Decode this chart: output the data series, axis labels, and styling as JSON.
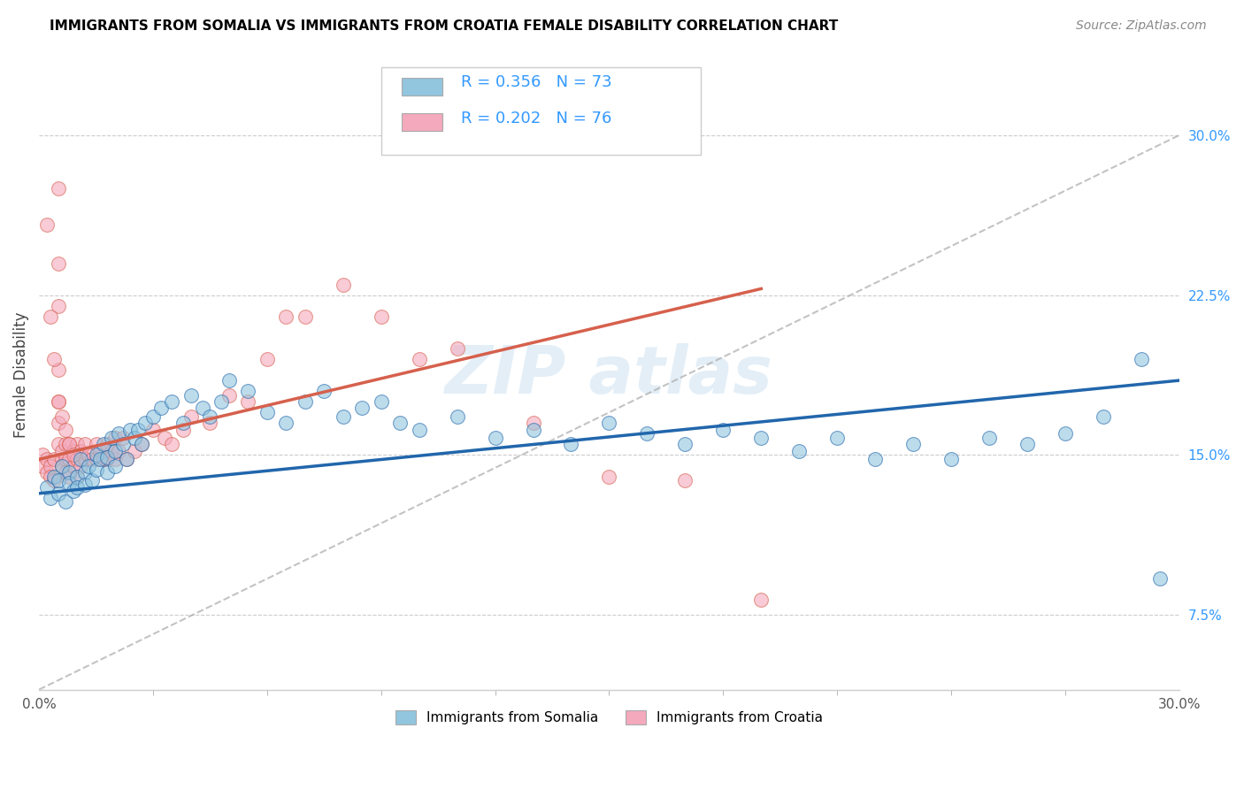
{
  "title": "IMMIGRANTS FROM SOMALIA VS IMMIGRANTS FROM CROATIA FEMALE DISABILITY CORRELATION CHART",
  "source": "Source: ZipAtlas.com",
  "ylabel": "Female Disability",
  "legend_label1": "Immigrants from Somalia",
  "legend_label2": "Immigrants from Croatia",
  "R1": 0.356,
  "N1": 73,
  "R2": 0.202,
  "N2": 76,
  "color_somalia": "#92c5de",
  "color_croatia": "#f4a9bc",
  "trend_color_somalia": "#2166ac",
  "trend_color_croatia": "#d6604d",
  "xlim": [
    0.0,
    0.3
  ],
  "ylim": [
    0.04,
    0.335
  ],
  "xtick_positions": [
    0.0,
    0.3
  ],
  "xtick_labels": [
    "0.0%",
    "30.0%"
  ],
  "yticks_right": [
    0.075,
    0.15,
    0.225,
    0.3
  ],
  "ytick_labels_right": [
    "7.5%",
    "15.0%",
    "22.5%",
    "30.0%"
  ],
  "watermark": "ZIP atlas",
  "somalia_x": [
    0.002,
    0.003,
    0.004,
    0.005,
    0.005,
    0.006,
    0.007,
    0.008,
    0.008,
    0.009,
    0.01,
    0.01,
    0.011,
    0.012,
    0.012,
    0.013,
    0.014,
    0.015,
    0.015,
    0.016,
    0.017,
    0.018,
    0.018,
    0.019,
    0.02,
    0.02,
    0.021,
    0.022,
    0.023,
    0.024,
    0.025,
    0.026,
    0.027,
    0.028,
    0.03,
    0.032,
    0.035,
    0.038,
    0.04,
    0.043,
    0.045,
    0.048,
    0.05,
    0.055,
    0.06,
    0.065,
    0.07,
    0.075,
    0.08,
    0.085,
    0.09,
    0.095,
    0.1,
    0.11,
    0.12,
    0.13,
    0.14,
    0.15,
    0.16,
    0.17,
    0.18,
    0.19,
    0.2,
    0.21,
    0.22,
    0.23,
    0.24,
    0.25,
    0.26,
    0.27,
    0.28,
    0.29,
    0.295
  ],
  "somalia_y": [
    0.135,
    0.13,
    0.14,
    0.132,
    0.138,
    0.145,
    0.128,
    0.142,
    0.137,
    0.133,
    0.14,
    0.135,
    0.148,
    0.142,
    0.136,
    0.145,
    0.138,
    0.15,
    0.143,
    0.148,
    0.155,
    0.149,
    0.142,
    0.158,
    0.152,
    0.145,
    0.16,
    0.155,
    0.148,
    0.162,
    0.158,
    0.162,
    0.155,
    0.165,
    0.168,
    0.172,
    0.175,
    0.165,
    0.178,
    0.172,
    0.168,
    0.175,
    0.185,
    0.18,
    0.17,
    0.165,
    0.175,
    0.18,
    0.168,
    0.172,
    0.175,
    0.165,
    0.162,
    0.168,
    0.158,
    0.162,
    0.155,
    0.165,
    0.16,
    0.155,
    0.162,
    0.158,
    0.152,
    0.158,
    0.148,
    0.155,
    0.148,
    0.158,
    0.155,
    0.16,
    0.168,
    0.195,
    0.092
  ],
  "croatia_x": [
    0.001,
    0.001,
    0.002,
    0.002,
    0.003,
    0.003,
    0.004,
    0.004,
    0.005,
    0.005,
    0.005,
    0.005,
    0.005,
    0.005,
    0.005,
    0.006,
    0.006,
    0.006,
    0.007,
    0.007,
    0.007,
    0.008,
    0.008,
    0.008,
    0.009,
    0.009,
    0.01,
    0.01,
    0.01,
    0.011,
    0.011,
    0.012,
    0.012,
    0.013,
    0.014,
    0.015,
    0.015,
    0.016,
    0.017,
    0.018,
    0.018,
    0.019,
    0.02,
    0.02,
    0.021,
    0.022,
    0.023,
    0.025,
    0.027,
    0.03,
    0.033,
    0.035,
    0.038,
    0.04,
    0.045,
    0.05,
    0.055,
    0.06,
    0.065,
    0.07,
    0.08,
    0.09,
    0.1,
    0.11,
    0.13,
    0.15,
    0.17,
    0.19,
    0.002,
    0.003,
    0.004,
    0.005,
    0.006,
    0.007,
    0.008,
    0.009
  ],
  "croatia_y": [
    0.15,
    0.145,
    0.142,
    0.148,
    0.145,
    0.14,
    0.148,
    0.138,
    0.275,
    0.24,
    0.22,
    0.19,
    0.175,
    0.165,
    0.155,
    0.148,
    0.152,
    0.145,
    0.155,
    0.148,
    0.142,
    0.155,
    0.148,
    0.14,
    0.152,
    0.145,
    0.155,
    0.148,
    0.14,
    0.152,
    0.145,
    0.155,
    0.148,
    0.15,
    0.148,
    0.155,
    0.148,
    0.152,
    0.148,
    0.155,
    0.148,
    0.152,
    0.158,
    0.148,
    0.152,
    0.158,
    0.148,
    0.152,
    0.155,
    0.162,
    0.158,
    0.155,
    0.162,
    0.168,
    0.165,
    0.178,
    0.175,
    0.195,
    0.215,
    0.215,
    0.23,
    0.215,
    0.195,
    0.2,
    0.165,
    0.14,
    0.138,
    0.082,
    0.258,
    0.215,
    0.195,
    0.175,
    0.168,
    0.162,
    0.155,
    0.15
  ],
  "somalia_trend_x": [
    0.0,
    0.3
  ],
  "somalia_trend_y": [
    0.132,
    0.185
  ],
  "croatia_trend_x": [
    0.0,
    0.19
  ],
  "croatia_trend_y": [
    0.148,
    0.228
  ],
  "ref_line_x": [
    0.0,
    0.3
  ],
  "ref_line_y": [
    0.04,
    0.3
  ]
}
